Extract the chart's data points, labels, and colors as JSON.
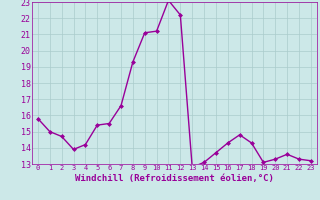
{
  "x": [
    0,
    1,
    2,
    3,
    4,
    5,
    6,
    7,
    8,
    9,
    10,
    11,
    12,
    13,
    14,
    15,
    16,
    17,
    18,
    19,
    20,
    21,
    22,
    23
  ],
  "y": [
    15.8,
    15.0,
    14.7,
    13.9,
    14.2,
    15.4,
    15.5,
    16.6,
    19.3,
    21.1,
    21.2,
    23.1,
    22.2,
    12.8,
    13.1,
    13.7,
    14.3,
    14.8,
    14.3,
    13.1,
    13.3,
    13.6,
    13.3,
    13.2
  ],
  "line_color": "#990099",
  "marker": "D",
  "marker_size": 2,
  "linewidth": 1.0,
  "bg_color": "#cce8e8",
  "grid_color": "#aacccc",
  "xlabel": "Windchill (Refroidissement éolien,°C)",
  "xlabel_fontsize": 6.5,
  "ylim": [
    13,
    23
  ],
  "yticks": [
    13,
    14,
    15,
    16,
    17,
    18,
    19,
    20,
    21,
    22,
    23
  ],
  "ytick_fontsize": 6,
  "xtick_fontsize": 5
}
